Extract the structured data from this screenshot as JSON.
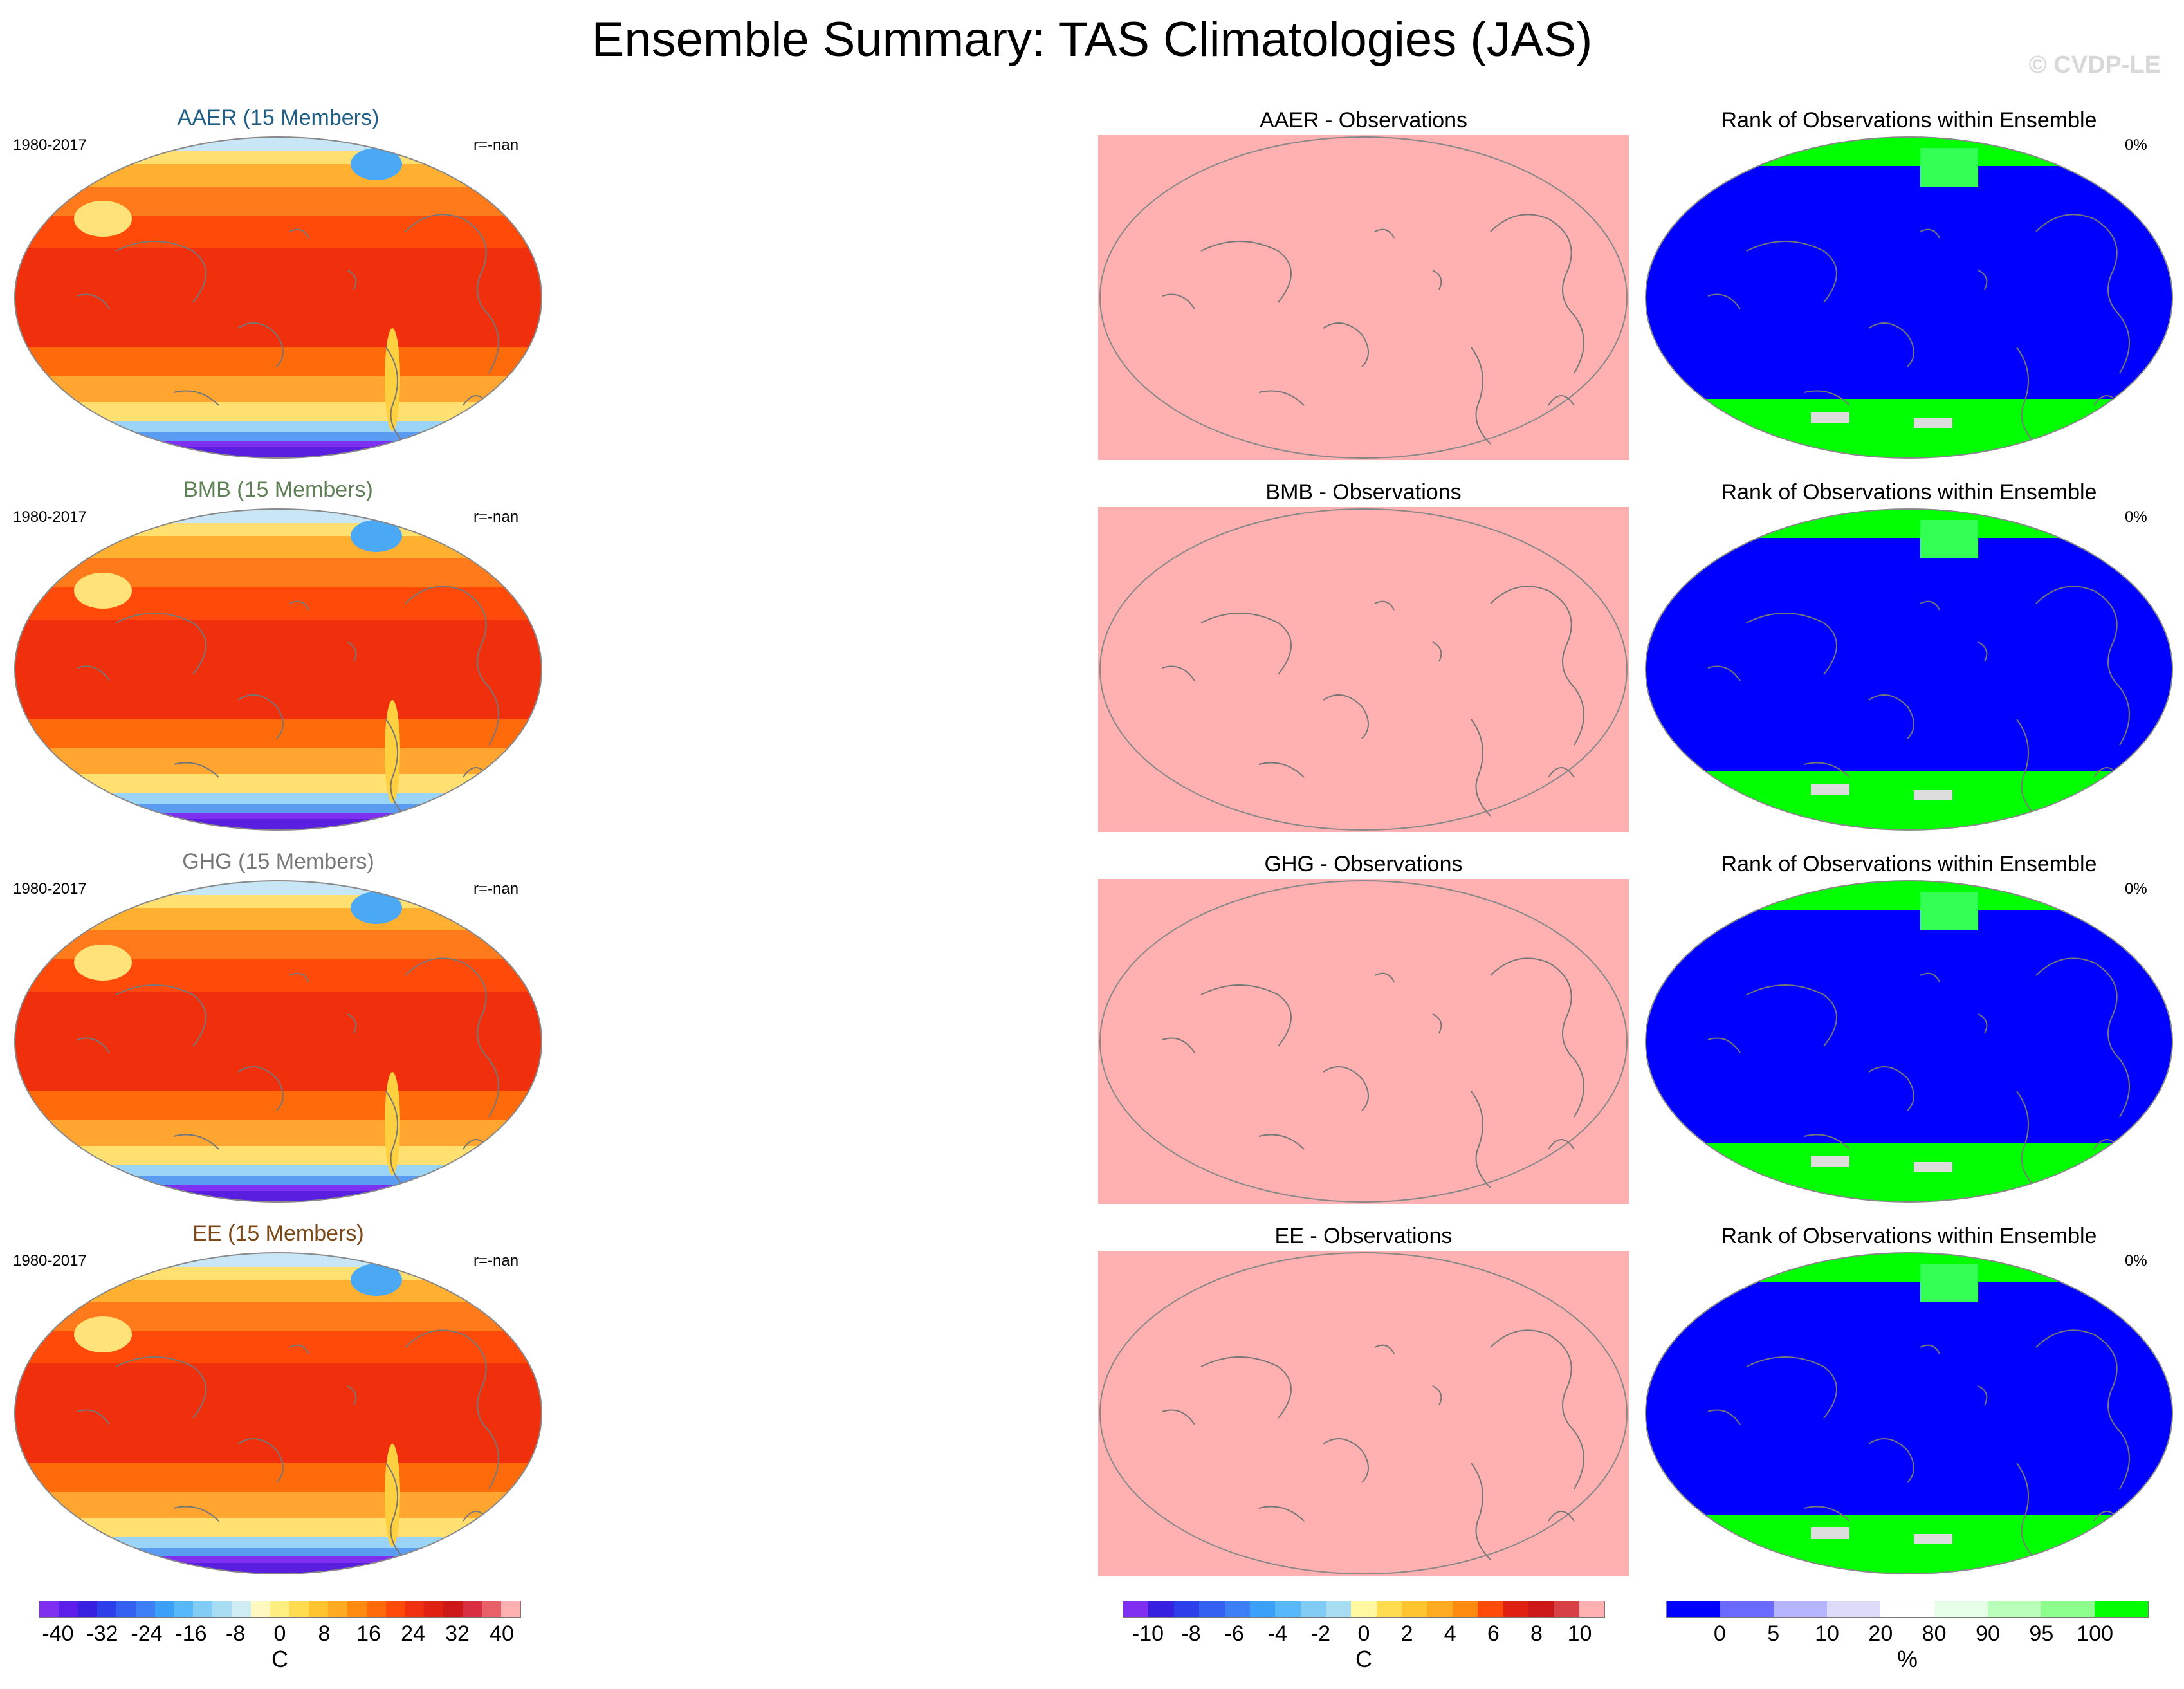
{
  "title": "Ensemble Summary: TAS Climatologies (JAS)",
  "watermark": "© CVDP-LE",
  "rows": [
    {
      "ens_title": "AAER (15 Members)",
      "ens_color": "#1f5f86",
      "period": "1980-2017",
      "rval": "r=-nan",
      "obs_title": "AAER - Observations",
      "rank_title": "Rank of Observations within Ensemble",
      "rank_pct": "0%"
    },
    {
      "ens_title": "BMB (15 Members)",
      "ens_color": "#5f7f56",
      "period": "1980-2017",
      "rval": "r=-nan",
      "obs_title": "BMB - Observations",
      "rank_title": "Rank of Observations within Ensemble",
      "rank_pct": "0%"
    },
    {
      "ens_title": "GHG (15 Members)",
      "ens_color": "#777777",
      "period": "1980-2017",
      "rval": "r=-nan",
      "obs_title": "GHG - Observations",
      "rank_title": "Rank of Observations within Ensemble",
      "rank_pct": "0%"
    },
    {
      "ens_title": "EE (15 Members)",
      "ens_color": "#7a4716",
      "period": "1980-2017",
      "rval": "r=-nan",
      "obs_title": "EE - Observations",
      "rank_title": "Rank of Observations within Ensemble",
      "rank_pct": "0%"
    }
  ],
  "colorbars": {
    "tas": {
      "ticks": [
        "-40",
        "-32",
        "-24",
        "-16",
        "-8",
        "0",
        "8",
        "16",
        "24",
        "32",
        "40"
      ],
      "unit": "C",
      "colors": [
        "#7f2ff0",
        "#5c1ee8",
        "#3820e0",
        "#2d3fe8",
        "#3360f0",
        "#3d80f5",
        "#3aa0f8",
        "#56b8f8",
        "#80ccf5",
        "#a8dcf3",
        "#d0ecf3",
        "#fff8c0",
        "#ffee80",
        "#ffdc50",
        "#ffc430",
        "#ffaa20",
        "#ff8a10",
        "#ff6a0a",
        "#ff4a0a",
        "#f03010",
        "#e02010",
        "#cc1818",
        "#d83040",
        "#e86068",
        "#ffb0b0"
      ]
    },
    "diff": {
      "ticks": [
        "-10",
        "-8",
        "-6",
        "-4",
        "-2",
        "0",
        "2",
        "4",
        "6",
        "8",
        "10"
      ],
      "unit": "C",
      "colors": [
        "#7f2ff0",
        "#3820e0",
        "#2d3fe8",
        "#3360f0",
        "#3d80f5",
        "#3aa0f8",
        "#56b8f8",
        "#80ccf5",
        "#a8dcf3",
        "#fff8a0",
        "#ffdc50",
        "#ffc430",
        "#ffaa20",
        "#ff8a10",
        "#ff4a0a",
        "#e02010",
        "#cc1818",
        "#d84048",
        "#ffb0b0"
      ]
    },
    "rank": {
      "ticks": [
        "0",
        "5",
        "10",
        "20",
        "80",
        "90",
        "95",
        "100"
      ],
      "unit": "%",
      "colors": [
        "#0000ff",
        "#6a6aff",
        "#b4b4ff",
        "#dcdcfa",
        "#ffffff",
        "#e6ffe6",
        "#b9ffb9",
        "#8cff8c",
        "#00ff00"
      ]
    }
  }
}
